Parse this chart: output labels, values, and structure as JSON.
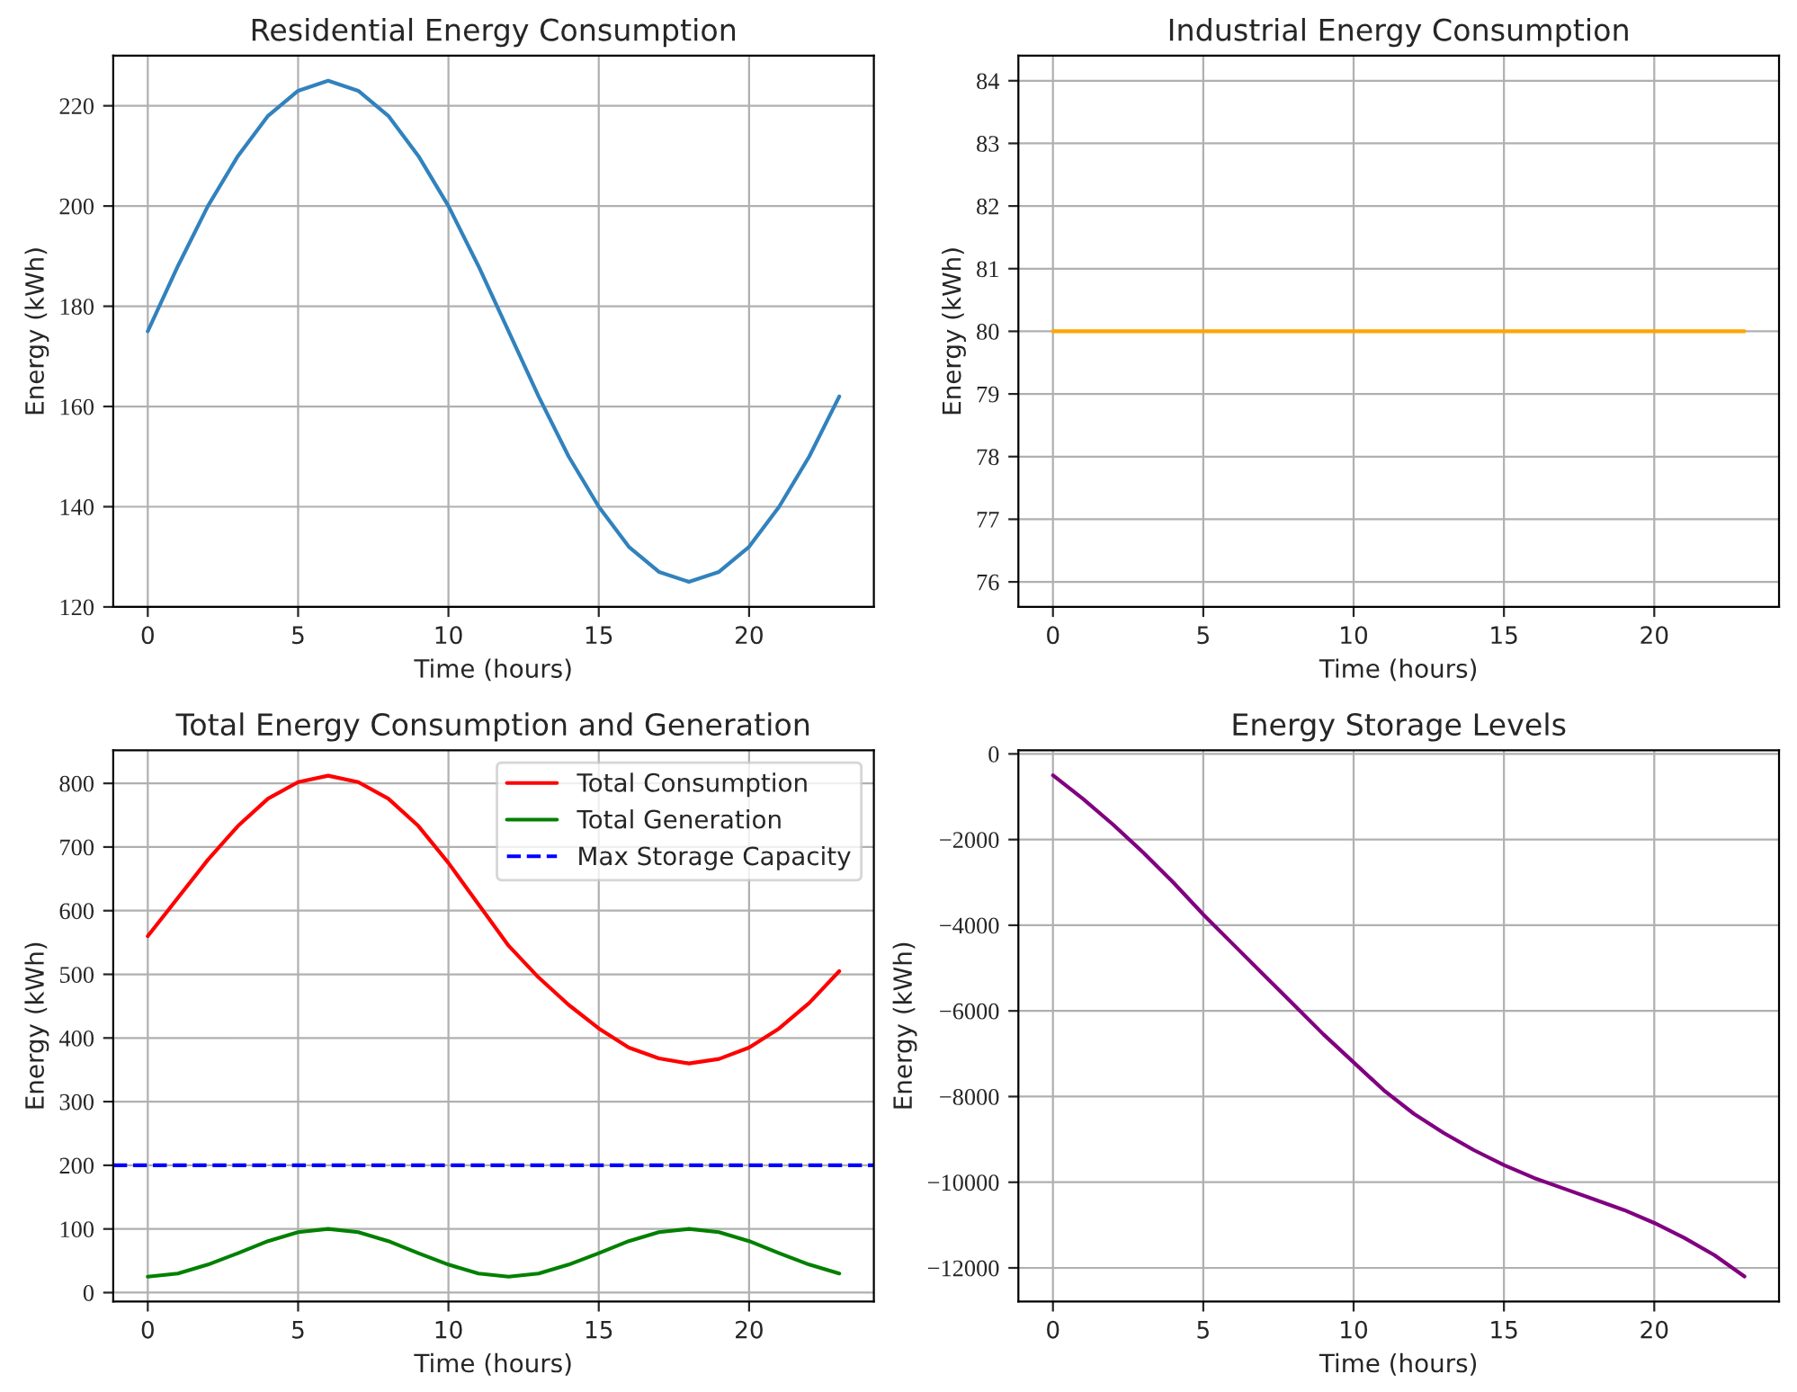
{
  "chart_data": [
    {
      "type": "line",
      "title": "Residential Energy Consumption",
      "xlabel": "Time (hours)",
      "ylabel": "Energy (kWh)",
      "x": [
        0,
        1,
        2,
        3,
        4,
        5,
        6,
        7,
        8,
        9,
        10,
        11,
        12,
        13,
        14,
        15,
        16,
        17,
        18,
        19,
        20,
        21,
        22,
        23
      ],
      "xlim": [
        -1.15,
        24.15
      ],
      "xticks": [
        0,
        5,
        10,
        15,
        20
      ],
      "ylim": [
        120,
        230
      ],
      "yticks": [
        120,
        140,
        160,
        180,
        200,
        220
      ],
      "grid": true,
      "series": [
        {
          "color": "#3182bd",
          "values": [
            175,
            188,
            200,
            210,
            218,
            223,
            225,
            223,
            218,
            210,
            200,
            188,
            175,
            162,
            150,
            140,
            132,
            127,
            125,
            127,
            132,
            140,
            150,
            162
          ]
        }
      ]
    },
    {
      "type": "line",
      "title": "Industrial Energy Consumption",
      "xlabel": "Time (hours)",
      "ylabel": "Energy (kWh)",
      "x": [
        0,
        1,
        2,
        3,
        4,
        5,
        6,
        7,
        8,
        9,
        10,
        11,
        12,
        13,
        14,
        15,
        16,
        17,
        18,
        19,
        20,
        21,
        22,
        23
      ],
      "xlim": [
        -1.15,
        24.15
      ],
      "xticks": [
        0,
        5,
        10,
        15,
        20
      ],
      "ylim": [
        75.6,
        84.4
      ],
      "yticks": [
        76,
        77,
        78,
        79,
        80,
        81,
        82,
        83,
        84
      ],
      "grid": true,
      "series": [
        {
          "color": "#ffa500",
          "values": [
            80,
            80,
            80,
            80,
            80,
            80,
            80,
            80,
            80,
            80,
            80,
            80,
            80,
            80,
            80,
            80,
            80,
            80,
            80,
            80,
            80,
            80,
            80,
            80
          ]
        }
      ]
    },
    {
      "type": "line",
      "title": "Total Energy Consumption and Generation",
      "xlabel": "Time (hours)",
      "ylabel": "Energy (kWh)",
      "x": [
        0,
        1,
        2,
        3,
        4,
        5,
        6,
        7,
        8,
        9,
        10,
        11,
        12,
        13,
        14,
        15,
        16,
        17,
        18,
        19,
        20,
        21,
        22,
        23
      ],
      "xlim": [
        -1.15,
        24.15
      ],
      "xticks": [
        0,
        5,
        10,
        15,
        20
      ],
      "ylim": [
        -14,
        852
      ],
      "yticks": [
        0,
        100,
        200,
        300,
        400,
        500,
        600,
        700,
        800
      ],
      "grid": true,
      "legend": "top right",
      "series": [
        {
          "name": "Total Consumption",
          "color": "#ff0000",
          "values": [
            560,
            620,
            680,
            733,
            776,
            802,
            812,
            802,
            776,
            733,
            675,
            610,
            545,
            495,
            452,
            415,
            385,
            368,
            360,
            367,
            385,
            415,
            455,
            505
          ]
        },
        {
          "name": "Total Generation",
          "color": "#008000",
          "values": [
            25,
            30,
            44,
            62,
            81,
            95,
            100,
            95,
            81,
            62,
            44,
            30,
            25,
            30,
            44,
            62,
            81,
            95,
            100,
            95,
            81,
            62,
            44,
            30
          ]
        }
      ],
      "ref_lines": [
        {
          "axis": "y",
          "value": 200,
          "label": "Max Storage Capacity",
          "color": "#0000ff",
          "line_style": "dashed"
        }
      ]
    },
    {
      "type": "line",
      "title": "Energy Storage Levels",
      "xlabel": "Time (hours)",
      "ylabel": "Energy (kWh)",
      "x": [
        0,
        1,
        2,
        3,
        4,
        5,
        6,
        7,
        8,
        9,
        10,
        11,
        12,
        13,
        14,
        15,
        16,
        17,
        18,
        19,
        20,
        21,
        22,
        23
      ],
      "xlim": [
        -1.15,
        24.15
      ],
      "xticks": [
        0,
        5,
        10,
        15,
        20
      ],
      "ylim": [
        -12785,
        85
      ],
      "yticks": [
        {
          "value": -12000,
          "label": "−12000"
        },
        {
          "value": -10000,
          "label": "−10000"
        },
        {
          "value": -8000,
          "label": "−8000"
        },
        {
          "value": -6000,
          "label": "−6000"
        },
        {
          "value": -4000,
          "label": "−4000"
        },
        {
          "value": -2000,
          "label": "−2000"
        },
        0
      ],
      "grid": true,
      "series": [
        {
          "color": "#800080",
          "values": [
            -500,
            -1050,
            -1650,
            -2300,
            -3000,
            -3750,
            -4450,
            -5150,
            -5850,
            -6550,
            -7200,
            -7850,
            -8400,
            -8850,
            -9250,
            -9600,
            -9900,
            -10150,
            -10400,
            -10650,
            -10950,
            -11300,
            -11700,
            -12200
          ]
        }
      ]
    }
  ]
}
